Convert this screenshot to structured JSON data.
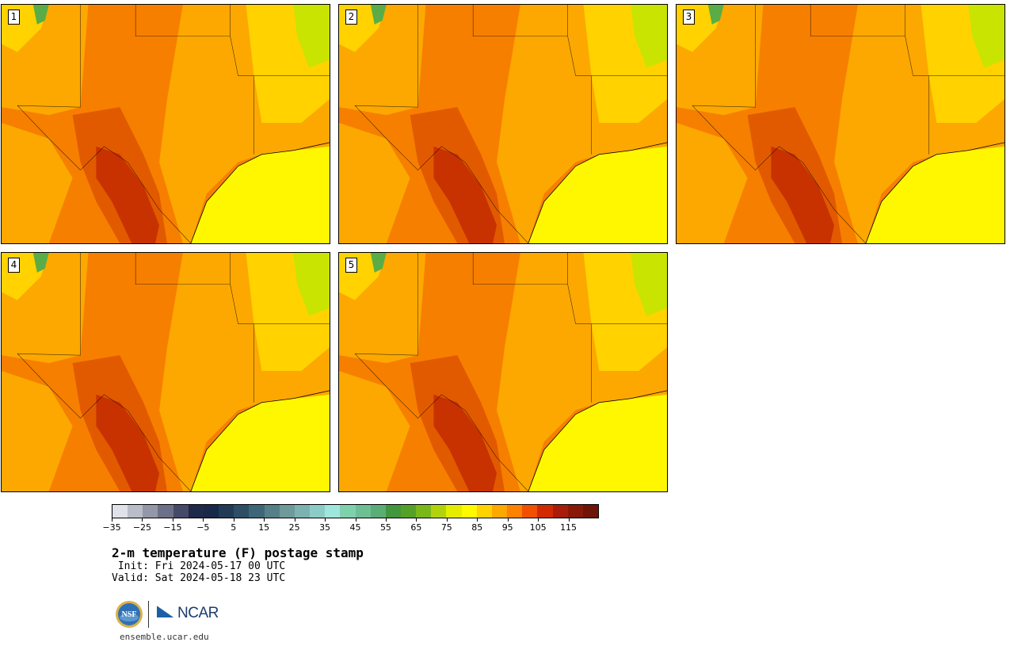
{
  "panels": [
    {
      "label": "1"
    },
    {
      "label": "2"
    },
    {
      "label": "3"
    },
    {
      "label": "4"
    },
    {
      "label": "5"
    }
  ],
  "colorbar": {
    "colors": [
      "#dfe2e8",
      "#b9bcc9",
      "#9497a8",
      "#6c7088",
      "#444a68",
      "#1e2a48",
      "#182848",
      "#213a56",
      "#2e4e66",
      "#3f6677",
      "#558088",
      "#6e9a9a",
      "#7cb3b0",
      "#8dccc6",
      "#9fe6dc",
      "#7fd1ad",
      "#6ebf93",
      "#5aad77",
      "#42963e",
      "#55a128",
      "#7ab819",
      "#b2d30b",
      "#e6ec00",
      "#fffa00",
      "#ffd200",
      "#fca800",
      "#fc8200",
      "#f05000",
      "#d22a00",
      "#a81c0a",
      "#881808",
      "#6e1408"
    ],
    "tick_labels": [
      "−35",
      "−25",
      "−15",
      "−5",
      "5",
      "15",
      "25",
      "35",
      "45",
      "55",
      "65",
      "75",
      "85",
      "95",
      "105",
      "115"
    ],
    "min": -35,
    "max": 125
  },
  "title": "2-m temperature (F) postage stamp",
  "init": " Init: Fri 2024-05-17 00 UTC",
  "valid": "Valid: Sat 2024-05-18 23 UTC",
  "logos": {
    "ncar_text": "NCAR",
    "nsf_text": "NSF"
  },
  "site": "ensemble.ucar.edu",
  "map_colors": {
    "far_hot": "#c83200",
    "very_hot": "#e25a00",
    "hot": "#f77f00",
    "warm": "#fca800",
    "mild": "#ffd200",
    "cool": "#fff400",
    "cooler": "#c8e400",
    "green": "#5aad46",
    "gulf": "#fff700"
  }
}
